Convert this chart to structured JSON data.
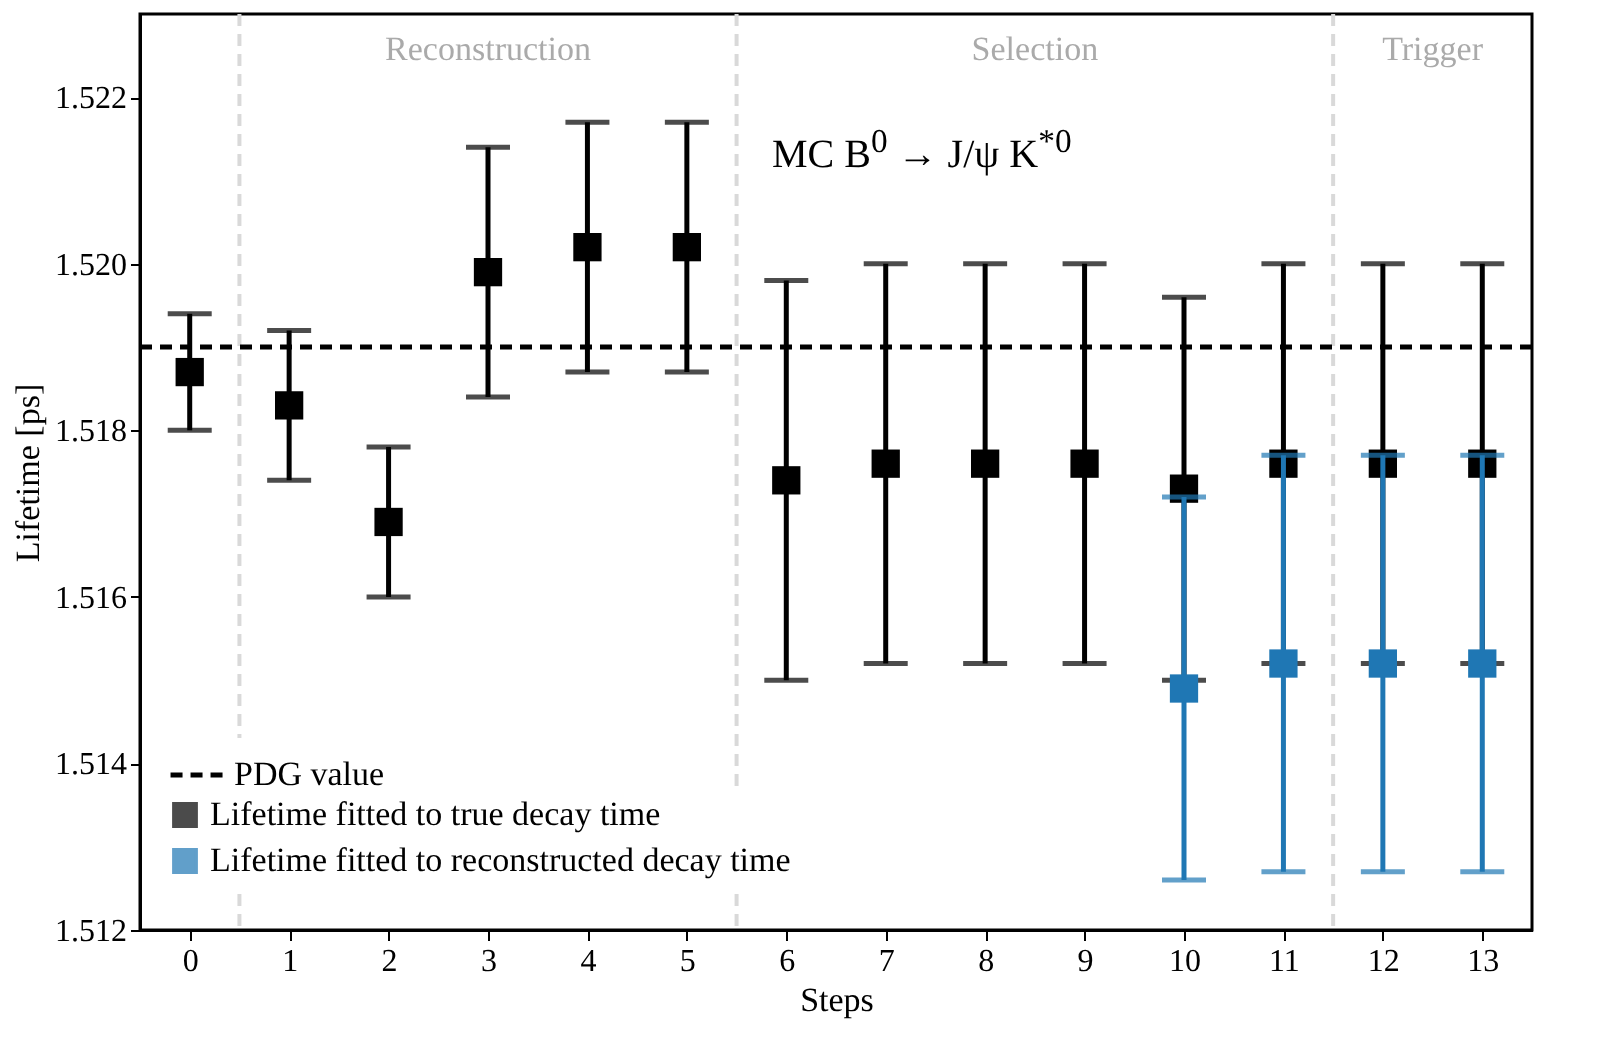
{
  "chart_data": {
    "type": "scatter",
    "xlabel": "Steps",
    "ylabel": "Lifetime [ps]",
    "x": [
      0,
      1,
      2,
      3,
      4,
      5,
      6,
      7,
      8,
      9,
      10,
      11,
      12,
      13
    ],
    "series": [
      {
        "name": "Lifetime fitted to true decay time",
        "color": "#000000",
        "values": [
          1.5187,
          1.5183,
          1.5169,
          1.5199,
          1.5202,
          1.5202,
          1.5174,
          1.5176,
          1.5176,
          1.5176,
          1.5173,
          1.5176,
          1.5176,
          1.5176
        ],
        "errors": [
          0.0007,
          0.0009,
          0.0009,
          0.0015,
          0.0015,
          0.0015,
          0.0024,
          0.0024,
          0.0024,
          0.0024,
          0.0023,
          0.0024,
          0.0024,
          0.0024
        ]
      },
      {
        "name": "Lifetime fitted to reconstructed decay time",
        "color": "#1f77b4",
        "values": [
          null,
          null,
          null,
          null,
          null,
          null,
          null,
          null,
          null,
          null,
          1.5149,
          1.5152,
          1.5152,
          1.5152
        ],
        "errors": [
          null,
          null,
          null,
          null,
          null,
          null,
          null,
          null,
          null,
          null,
          0.0023,
          0.0025,
          0.0025,
          0.0025
        ]
      }
    ],
    "marker": "square",
    "xlim": [
      -0.5,
      13.5
    ],
    "xticks": [
      0,
      1,
      2,
      3,
      4,
      5,
      6,
      7,
      8,
      9,
      10,
      11,
      12,
      13
    ],
    "ylim": [
      1.512,
      1.523
    ],
    "yticks": [
      1.512,
      1.514,
      1.516,
      1.518,
      {
        "value": 1.52,
        "label": "1.520"
      },
      1.522
    ],
    "ref_lines": [
      {
        "axis": "y",
        "value": 1.519,
        "label": "PDG value",
        "color": "#000000",
        "line_style": "dashed"
      },
      {
        "axis": "x",
        "value": 0.5,
        "color": "#d9d9d9",
        "line_style": "dashed"
      },
      {
        "axis": "x",
        "value": 5.5,
        "color": "#d9d9d9",
        "line_style": "dashed"
      },
      {
        "axis": "x",
        "value": 11.5,
        "color": "#d9d9d9",
        "line_style": "dashed"
      }
    ],
    "annotations": [
      "Reconstruction",
      "Selection",
      "Trigger",
      "MC B$^{0}$ → J/ψ K$^{*0}$"
    ],
    "legend": "bottom left",
    "grid": false
  }
}
